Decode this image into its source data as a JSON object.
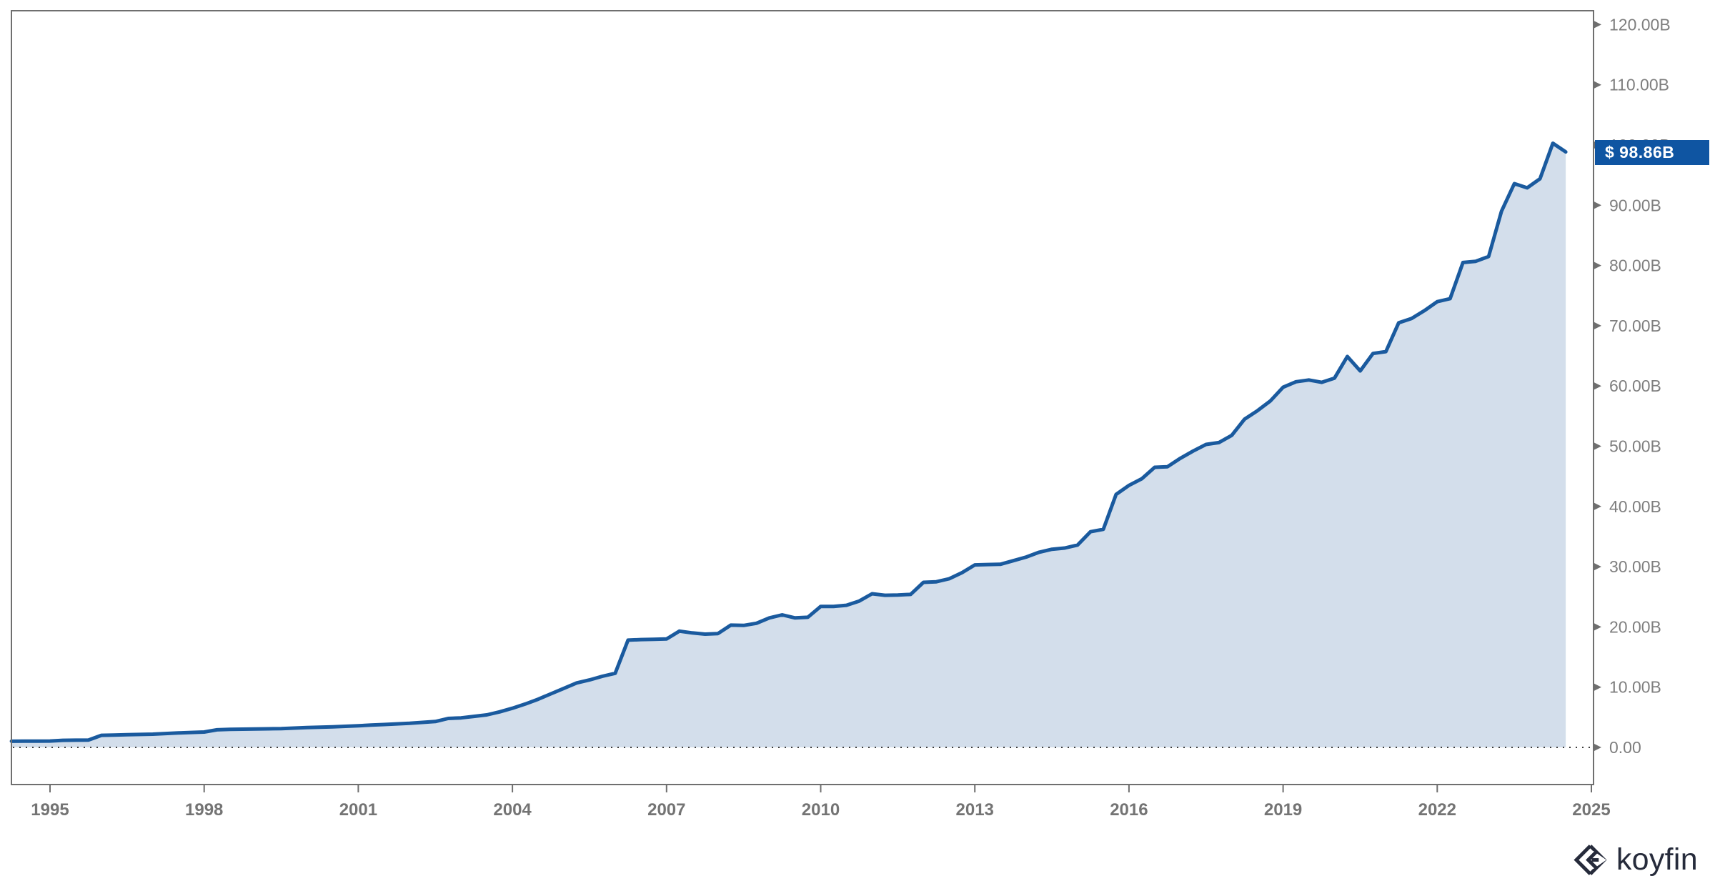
{
  "chart_data": {
    "type": "area",
    "title": "",
    "unit": "USD billions",
    "grid": "off",
    "legend": "none",
    "zero_line": "dotted",
    "xlim": [
      1994.19,
      2025.04
    ],
    "ylim": [
      0,
      122
    ],
    "x_ticks": [
      1995,
      1998,
      2001,
      2004,
      2007,
      2010,
      2013,
      2016,
      2019,
      2022,
      2025
    ],
    "y_ticks": [
      {
        "value": 0,
        "label": "0.00"
      },
      {
        "value": 10,
        "label": "10.00B"
      },
      {
        "value": 20,
        "label": "20.00B"
      },
      {
        "value": 30,
        "label": "30.00B"
      },
      {
        "value": 40,
        "label": "40.00B"
      },
      {
        "value": 50,
        "label": "50.00B"
      },
      {
        "value": 60,
        "label": "60.00B"
      },
      {
        "value": 70,
        "label": "70.00B"
      },
      {
        "value": 80,
        "label": "80.00B"
      },
      {
        "value": 90,
        "label": "90.00B"
      },
      {
        "value": 100,
        "label": "100.00B"
      },
      {
        "value": 110,
        "label": "110.00B"
      },
      {
        "value": 120,
        "label": "120.00B"
      }
    ],
    "last_value": 98.86,
    "last_value_label": "$ 98.86B",
    "points": [
      [
        1994.25,
        1.02
      ],
      [
        1994.5,
        1.03
      ],
      [
        1994.75,
        1.03
      ],
      [
        1995,
        1.05
      ],
      [
        1995.25,
        1.18
      ],
      [
        1995.5,
        1.2
      ],
      [
        1995.75,
        1.22
      ],
      [
        1996,
        2.0
      ],
      [
        1996.25,
        2.05
      ],
      [
        1996.5,
        2.1
      ],
      [
        1996.75,
        2.15
      ],
      [
        1997,
        2.2
      ],
      [
        1997.25,
        2.3
      ],
      [
        1997.5,
        2.4
      ],
      [
        1997.75,
        2.48
      ],
      [
        1998,
        2.55
      ],
      [
        1998.25,
        2.92
      ],
      [
        1998.5,
        3.0
      ],
      [
        1998.75,
        3.02
      ],
      [
        1999,
        3.05
      ],
      [
        1999.25,
        3.08
      ],
      [
        1999.5,
        3.12
      ],
      [
        1999.75,
        3.2
      ],
      [
        2000,
        3.3
      ],
      [
        2000.25,
        3.35
      ],
      [
        2000.5,
        3.42
      ],
      [
        2000.75,
        3.5
      ],
      [
        2001,
        3.6
      ],
      [
        2001.25,
        3.7
      ],
      [
        2001.5,
        3.8
      ],
      [
        2001.75,
        3.9
      ],
      [
        2002,
        4.0
      ],
      [
        2002.25,
        4.15
      ],
      [
        2002.5,
        4.3
      ],
      [
        2002.75,
        4.8
      ],
      [
        2003,
        4.9
      ],
      [
        2003.25,
        5.15
      ],
      [
        2003.5,
        5.4
      ],
      [
        2003.75,
        5.9
      ],
      [
        2004,
        6.5
      ],
      [
        2004.25,
        7.2
      ],
      [
        2004.5,
        8.0
      ],
      [
        2004.75,
        8.9
      ],
      [
        2005,
        9.8
      ],
      [
        2005.25,
        10.7
      ],
      [
        2005.5,
        11.2
      ],
      [
        2005.75,
        11.8
      ],
      [
        2006,
        12.3
      ],
      [
        2006.25,
        17.8
      ],
      [
        2006.5,
        17.9
      ],
      [
        2006.75,
        17.95
      ],
      [
        2007,
        18.0
      ],
      [
        2007.25,
        19.3
      ],
      [
        2007.5,
        19.0
      ],
      [
        2007.75,
        18.8
      ],
      [
        2008,
        18.9
      ],
      [
        2008.25,
        20.3
      ],
      [
        2008.5,
        20.25
      ],
      [
        2008.75,
        20.6
      ],
      [
        2009,
        21.5
      ],
      [
        2009.25,
        22.0
      ],
      [
        2009.5,
        21.5
      ],
      [
        2009.75,
        21.6
      ],
      [
        2010,
        23.4
      ],
      [
        2010.25,
        23.4
      ],
      [
        2010.5,
        23.6
      ],
      [
        2010.75,
        24.3
      ],
      [
        2011,
        25.5
      ],
      [
        2011.25,
        25.25
      ],
      [
        2011.5,
        25.3
      ],
      [
        2011.75,
        25.4
      ],
      [
        2012,
        27.4
      ],
      [
        2012.25,
        27.5
      ],
      [
        2012.5,
        28.0
      ],
      [
        2012.75,
        29.0
      ],
      [
        2013,
        30.3
      ],
      [
        2013.25,
        30.35
      ],
      [
        2013.5,
        30.4
      ],
      [
        2013.75,
        31.0
      ],
      [
        2014,
        31.6
      ],
      [
        2014.25,
        32.4
      ],
      [
        2014.5,
        32.9
      ],
      [
        2014.75,
        33.1
      ],
      [
        2015,
        33.6
      ],
      [
        2015.25,
        35.8
      ],
      [
        2015.5,
        36.2
      ],
      [
        2015.75,
        42.0
      ],
      [
        2016,
        43.5
      ],
      [
        2016.25,
        44.6
      ],
      [
        2016.5,
        46.5
      ],
      [
        2016.75,
        46.6
      ],
      [
        2017,
        48.0
      ],
      [
        2017.25,
        49.2
      ],
      [
        2017.5,
        50.3
      ],
      [
        2017.75,
        50.6
      ],
      [
        2018,
        51.8
      ],
      [
        2018.25,
        54.5
      ],
      [
        2018.5,
        55.9
      ],
      [
        2018.75,
        57.5
      ],
      [
        2019,
        59.8
      ],
      [
        2019.25,
        60.7
      ],
      [
        2019.5,
        61.0
      ],
      [
        2019.75,
        60.6
      ],
      [
        2020,
        61.3
      ],
      [
        2020.25,
        64.9
      ],
      [
        2020.5,
        62.5
      ],
      [
        2020.75,
        65.4
      ],
      [
        2021,
        65.7
      ],
      [
        2021.25,
        70.5
      ],
      [
        2021.5,
        71.2
      ],
      [
        2021.75,
        72.5
      ],
      [
        2022,
        74.0
      ],
      [
        2022.25,
        74.5
      ],
      [
        2022.5,
        80.5
      ],
      [
        2022.75,
        80.7
      ],
      [
        2023,
        81.5
      ],
      [
        2023.25,
        89.0
      ],
      [
        2023.5,
        93.6
      ],
      [
        2023.75,
        92.9
      ],
      [
        2024,
        94.4
      ],
      [
        2024.25,
        100.3
      ],
      [
        2024.5,
        98.86
      ]
    ]
  },
  "colors": {
    "line": "#1A5A9E",
    "fill": "#D3DEEB",
    "badge_bg": "#0F55A2",
    "badge_text": "#FFFFFF",
    "border": "#6F6F6F",
    "y_label": "#7E7E7E",
    "x_label": "#747474",
    "zero_line": "#3C3C3C",
    "logo": "#262B3B"
  },
  "logo": {
    "text": "koyfin"
  }
}
